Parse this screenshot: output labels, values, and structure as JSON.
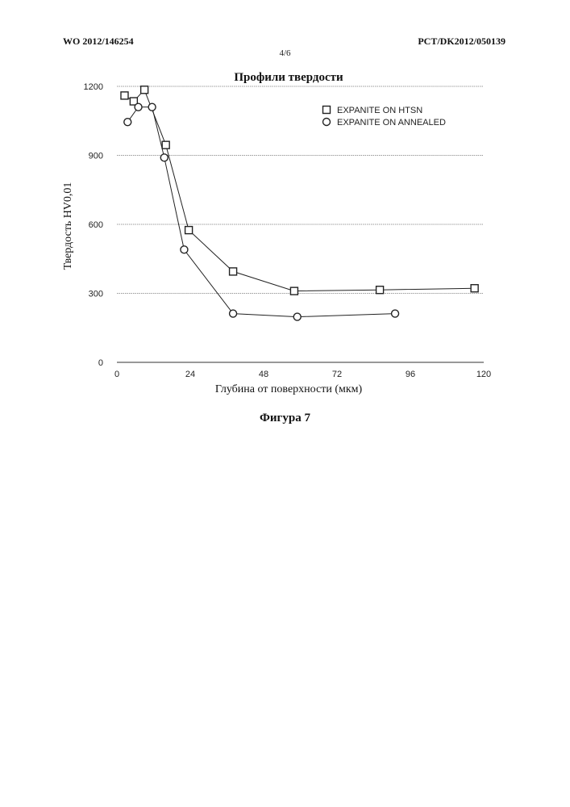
{
  "header": {
    "left": "WO 2012/146254",
    "right": "PCT/DK2012/050139",
    "page": "4/6"
  },
  "figure_caption": "Фигура 7",
  "chart_data": {
    "type": "line",
    "title": "Профили твердости",
    "xlabel": "Глубина от поверхности (мкм)",
    "ylabel": "Твердость HV0,01",
    "xlim": [
      0,
      120
    ],
    "ylim": [
      0,
      1200
    ],
    "xticks": [
      0,
      24,
      48,
      72,
      96,
      120
    ],
    "yticks": [
      0,
      300,
      600,
      900,
      1200
    ],
    "grid": "horizontal",
    "legend_position": "top-right",
    "series": [
      {
        "name": "EXPANITE ON HTSN",
        "marker": "square",
        "x": [
          2.5,
          5.5,
          9,
          16,
          23.5,
          38,
          58,
          86,
          117
        ],
        "y": [
          1160,
          1135,
          1185,
          945,
          575,
          395,
          310,
          315,
          322
        ]
      },
      {
        "name": "EXPANITE ON ANNEALED",
        "marker": "circle",
        "x": [
          3.5,
          7,
          11.5,
          15.5,
          22,
          38,
          59,
          91
        ],
        "y": [
          1045,
          1110,
          1110,
          890,
          490,
          212,
          198,
          212
        ]
      }
    ]
  }
}
